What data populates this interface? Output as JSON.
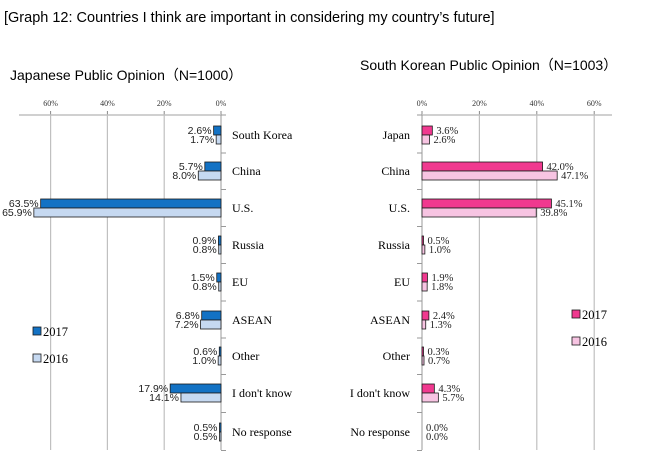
{
  "title": "[Graph 12: Countries I think are important in considering my country’s future]",
  "colors": {
    "jp2017": "#1372c4",
    "jp2016": "#c6d9f1",
    "kr2017": "#f0398f",
    "kr2016": "#f7c4e2",
    "grid": "#c0c0c0"
  },
  "chart_data": [
    {
      "type": "bar",
      "orientation": "horizontal",
      "direction": "right-to-left",
      "title": "Japanese Public Opinion（N=1000）",
      "categories": [
        "South Korea",
        "China",
        "U.S.",
        "Russia",
        "EU",
        "ASEAN",
        "Other",
        "I don't know",
        "No response"
      ],
      "series": [
        {
          "name": "2017",
          "values": [
            2.6,
            5.7,
            63.5,
            0.9,
            1.5,
            6.8,
            0.6,
            17.9,
            0.5
          ],
          "labels": [
            "2.6%",
            "5.7%",
            "63.5%",
            "0.9%",
            "1.5%",
            "6.8%",
            "0.6%",
            "17.9%",
            "0.5%"
          ]
        },
        {
          "name": "2016",
          "values": [
            1.7,
            8.0,
            65.9,
            0.8,
            0.8,
            7.2,
            1.0,
            14.1,
            0.5
          ],
          "labels": [
            "1.7%",
            "8.0%",
            "65.9%",
            "0.8%",
            "0.8%",
            "7.2%",
            "1.0%",
            "14.1%",
            "0.5%"
          ]
        }
      ],
      "xticks": [
        "60%",
        "40%",
        "20%",
        "0%"
      ],
      "xlim": [
        0,
        70
      ],
      "legend": "bottom-left"
    },
    {
      "type": "bar",
      "orientation": "horizontal",
      "title": "South Korean Public Opinion（N=1003）",
      "categories": [
        "Japan",
        "China",
        "U.S.",
        "Russia",
        "EU",
        "ASEAN",
        "Other",
        "I don't know",
        "No response"
      ],
      "series": [
        {
          "name": "2017",
          "values": [
            3.6,
            42.0,
            45.1,
            0.5,
            1.9,
            2.4,
            0.3,
            4.3,
            0.0
          ],
          "labels": [
            "3.6%",
            "42.0%",
            "45.1%",
            "0.5%",
            "1.9%",
            "2.4%",
            "0.3%",
            "4.3%",
            "0.0%"
          ]
        },
        {
          "name": "2016",
          "values": [
            2.6,
            47.1,
            39.8,
            1.0,
            1.8,
            1.3,
            0.7,
            5.7,
            0.0
          ],
          "labels": [
            "2.6%",
            "47.1%",
            "39.8%",
            "1.0%",
            "1.8%",
            "1.3%",
            "0.7%",
            "5.7%",
            "0.0%"
          ]
        }
      ],
      "xticks": [
        "0%",
        "20%",
        "40%",
        "60%"
      ],
      "xlim": [
        0,
        66
      ],
      "legend": "right"
    }
  ]
}
